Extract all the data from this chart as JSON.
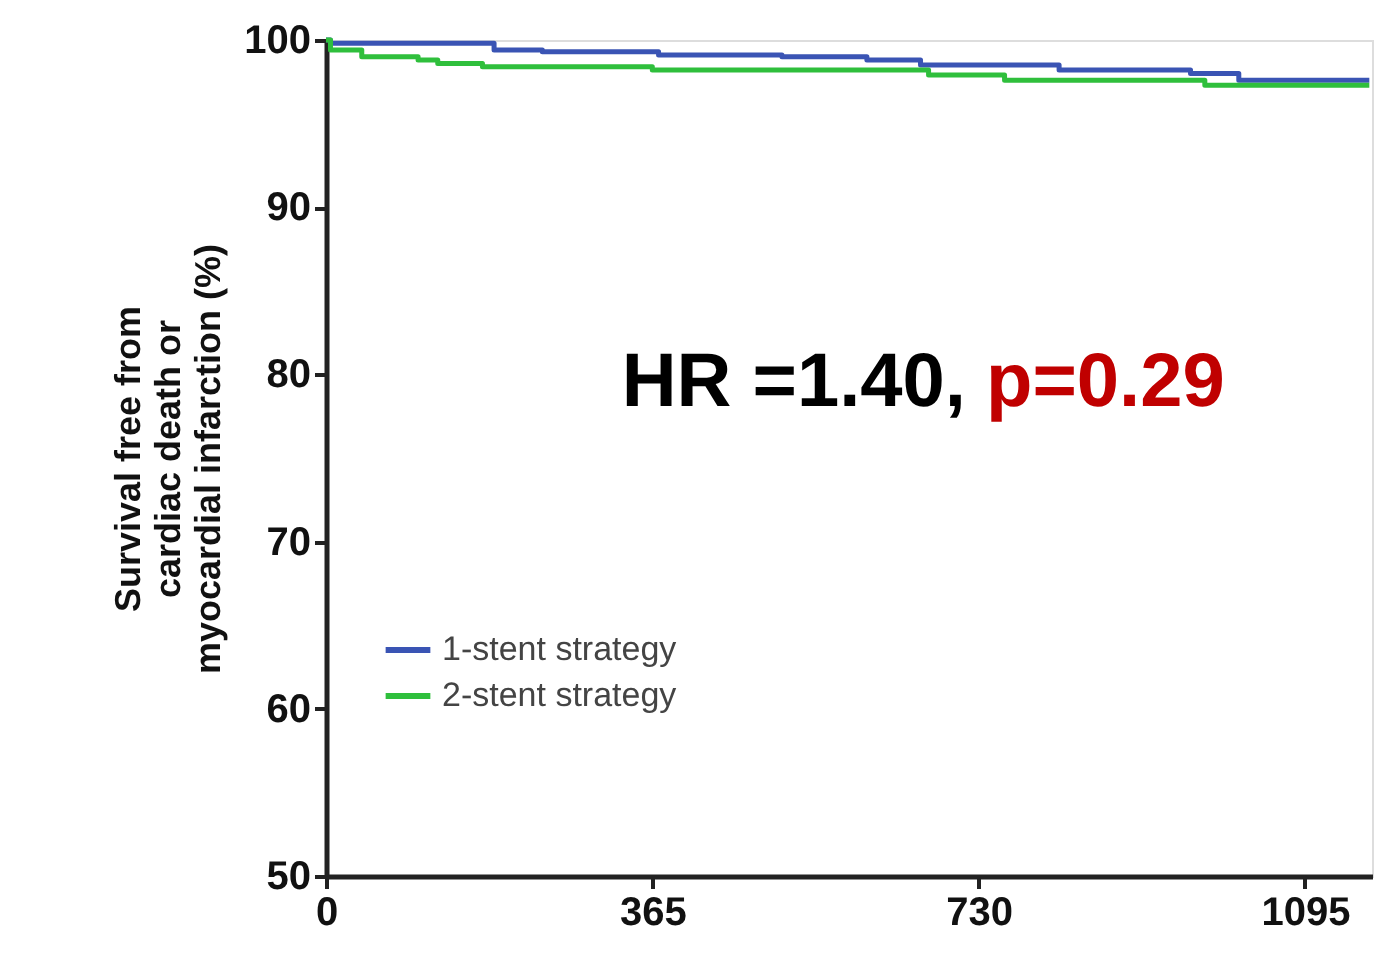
{
  "chart_data": {
    "type": "step",
    "ylabel": "Survival free from\ncardiac death or\nmyocardial infarction (%)",
    "xlim": [
      0,
      1170
    ],
    "xticks": [
      0,
      365,
      730,
      1095
    ],
    "ylim": [
      50,
      100
    ],
    "yticks": [
      50,
      60,
      70,
      80,
      90,
      100
    ],
    "grid": false,
    "legend": "bottom left",
    "marker": "none",
    "line_style": "solid",
    "annotations": [
      "HR =1.40,",
      "p=0.29"
    ],
    "series": [
      {
        "name": "1-stent strategy",
        "color": "#3a54b4",
        "x": [
          0,
          5,
          188,
          242,
          372,
          510,
          605,
          665,
          820,
          967,
          1021,
          1167
        ],
        "values": [
          100,
          99.8,
          99.4,
          99.3,
          99.1,
          99.0,
          98.8,
          98.5,
          98.2,
          98.0,
          97.6,
          97.6
        ]
      },
      {
        "name": "2-stent strategy",
        "color": "#2fbf3c",
        "x": [
          0,
          5,
          40,
          103,
          125,
          175,
          365,
          674,
          759,
          983,
          1167
        ],
        "values": [
          100,
          99.4,
          99.0,
          98.8,
          98.6,
          98.4,
          98.2,
          97.9,
          97.6,
          97.3,
          97.3
        ]
      }
    ]
  }
}
